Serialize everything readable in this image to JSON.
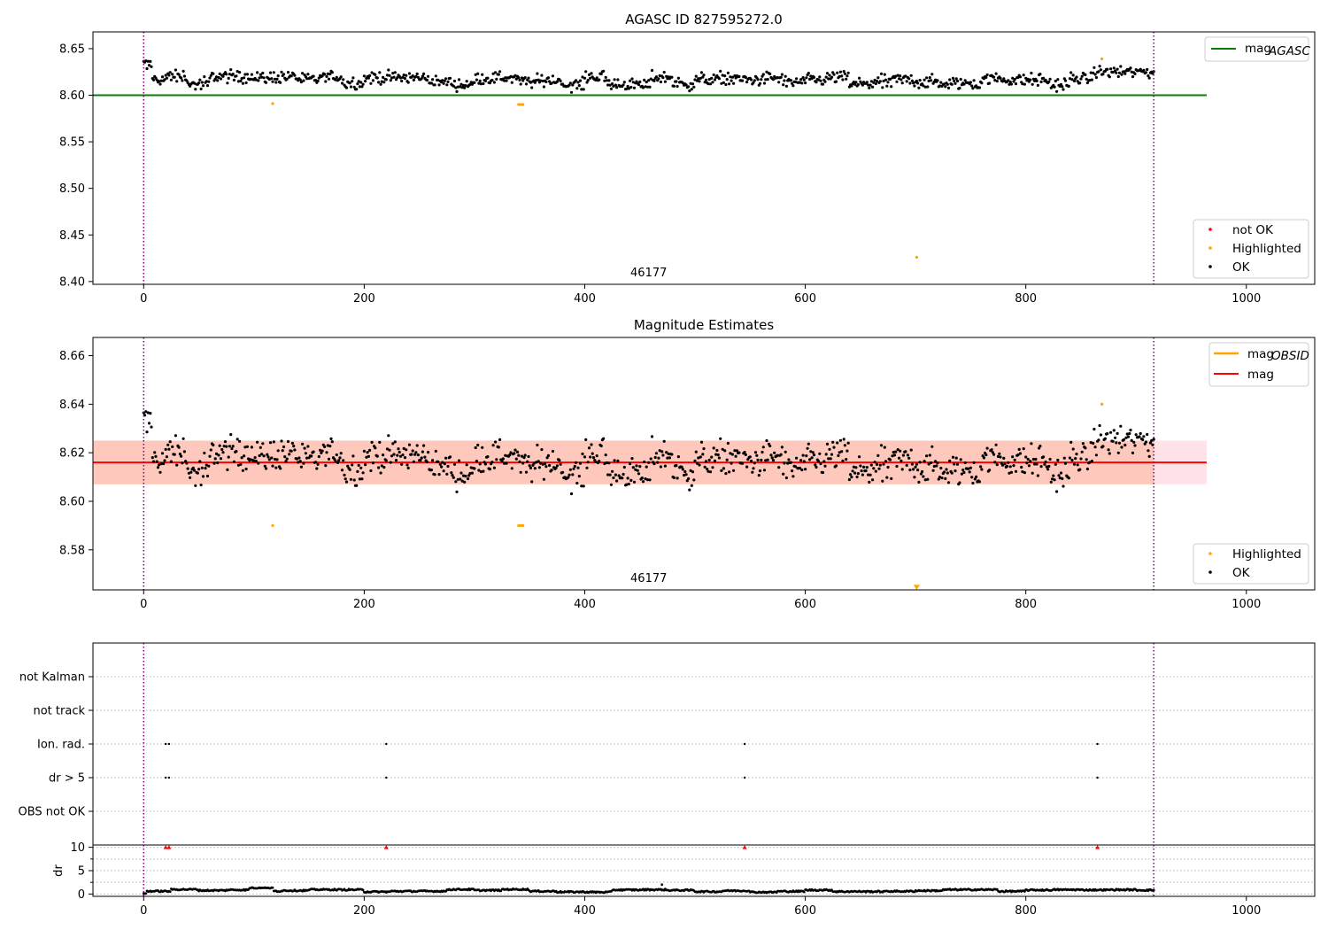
{
  "chart_data": [
    {
      "type": "scatter",
      "title": "AGASC ID 827595272.0",
      "xlim": [
        -46,
        1062
      ],
      "ylim": [
        8.397,
        8.668
      ],
      "xticks": [
        "0",
        "200",
        "400",
        "600",
        "800",
        "1000"
      ],
      "yticks": [
        "8.40",
        "8.45",
        "8.50",
        "8.55",
        "8.60",
        "8.65"
      ],
      "ytick_values": [
        8.4,
        8.45,
        8.5,
        8.55,
        8.6,
        8.65
      ],
      "vlines": [
        0,
        916
      ],
      "annotation": {
        "text": "46177",
        "x": 458
      },
      "hline": {
        "name": "mag",
        "subscript": "AGASC",
        "value": 8.6,
        "x": [
          -46,
          964
        ],
        "color": "#008000"
      },
      "legend_points": [
        {
          "name": "not OK",
          "color": "#ff0000"
        },
        {
          "name": "Highlighted",
          "color": "#ffa500"
        },
        {
          "name": "OK",
          "color": "#000000"
        }
      ],
      "series": [
        {
          "name": "OK",
          "color": "#000000",
          "points": "generated",
          "base": 8.616,
          "noise": 0.009
        },
        {
          "name": "Highlighted",
          "color": "#ffa500",
          "x": [
            117,
            340,
            342,
            344,
            701,
            869
          ],
          "y": [
            8.591,
            8.59,
            8.59,
            8.59,
            8.426,
            8.639
          ]
        }
      ]
    },
    {
      "type": "scatter",
      "title": "Magnitude Estimates",
      "xlim": [
        -46,
        1062
      ],
      "ylim": [
        8.5635,
        8.6675
      ],
      "xticks": [
        "0",
        "200",
        "400",
        "600",
        "800",
        "1000"
      ],
      "yticks": [
        "8.58",
        "8.60",
        "8.62",
        "8.64",
        "8.66"
      ],
      "ytick_values": [
        8.58,
        8.6,
        8.62,
        8.64,
        8.66
      ],
      "vlines": [
        0,
        916
      ],
      "annotation": {
        "text": "46177",
        "x": 458
      },
      "bands": [
        {
          "name": "mag band",
          "low": 8.607,
          "high": 8.625,
          "x": [
            -46,
            964
          ],
          "color": "#ffc0cb"
        },
        {
          "name": "mag_OBSID band",
          "low": 8.607,
          "high": 8.625,
          "x": [
            -46,
            916
          ],
          "color": "#ffa07a"
        }
      ],
      "lines": [
        {
          "name": "mag",
          "subscript": "OBSID",
          "color": "#ffa500"
        },
        {
          "name": "mag",
          "value": 8.616,
          "x": [
            -46,
            964
          ],
          "color": "#ff0000"
        }
      ],
      "legend_points": [
        {
          "name": "Highlighted",
          "color": "#ffa500"
        },
        {
          "name": "OK",
          "color": "#000000"
        }
      ],
      "series": [
        {
          "name": "OK",
          "color": "#000000",
          "points": "generated",
          "base": 8.616,
          "noise": 0.009
        },
        {
          "name": "Highlighted",
          "color": "#ffa500",
          "x": [
            117,
            340,
            342,
            344,
            869
          ],
          "y": [
            8.59,
            8.59,
            8.59,
            8.59,
            8.64
          ]
        },
        {
          "name": "Highlighted (out of range)",
          "color": "#ffa500",
          "marker": "triangle-down",
          "x": [
            701
          ],
          "y": [
            8.5645
          ]
        }
      ]
    },
    {
      "type": "scatter",
      "title": "",
      "xlim": [
        -46,
        1062
      ],
      "categories": [
        "not Kalman",
        "not track",
        "Ion. rad.",
        "dr > 5",
        "OBS not OK"
      ],
      "vlines": [
        0,
        916
      ],
      "flags": {
        "Ion. rad.": [
          20,
          23,
          220,
          545,
          865
        ],
        "dr > 5": [
          20,
          23,
          220,
          545,
          865
        ]
      }
    },
    {
      "type": "scatter",
      "title": "",
      "ylabel": "dr",
      "xlim": [
        -46,
        1062
      ],
      "ylim": [
        -0.5,
        10.5
      ],
      "xticks": [
        "0",
        "200",
        "400",
        "600",
        "800",
        "1000"
      ],
      "yticks": [
        "0",
        "5",
        "10"
      ],
      "ytick_values": [
        0,
        5,
        10
      ],
      "vlines": [
        0,
        916
      ],
      "clipped_points": {
        "x": [
          20,
          23,
          220,
          545,
          865
        ],
        "y": 10,
        "color": "#ff0000",
        "marker": "triangle-up"
      },
      "series": [
        {
          "name": "dr",
          "color": "#000000",
          "points": "generated",
          "base": 0.6,
          "noise": 0.25
        }
      ],
      "outlier": {
        "x": 470,
        "y": 2.0
      }
    }
  ]
}
